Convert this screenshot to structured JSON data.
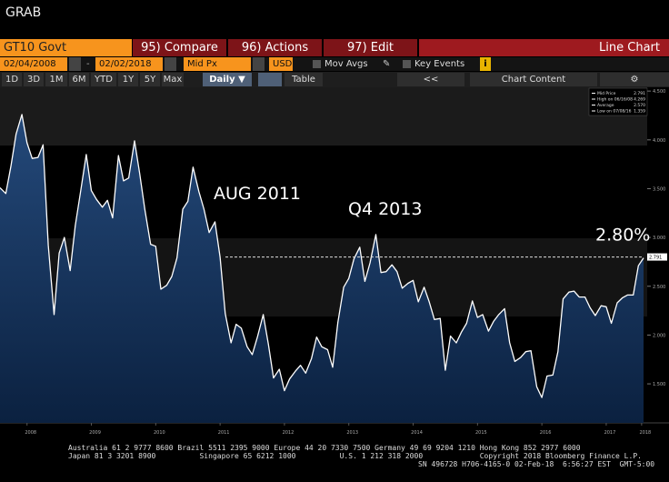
{
  "window": {
    "title": "GRAB"
  },
  "toolbar": {
    "security": "GT10 Govt",
    "buttons": [
      "95) Compare",
      "96) Actions",
      "97) Edit"
    ],
    "chart_type": "Line Chart",
    "start_date": "02/04/2008",
    "end_date": "02/02/2018",
    "field": "Mid Px",
    "currency": "USD",
    "options": [
      "Mov Avgs",
      "Key Events"
    ],
    "periods": [
      "1D",
      "3D",
      "1M",
      "6M",
      "YTD",
      "1Y",
      "5Y",
      "Max"
    ],
    "frequency": "Daily",
    "table": "Table",
    "nav": "<<",
    "chart_content": "Chart Content"
  },
  "chart_data": {
    "type": "line",
    "x": [
      2008.08,
      2008.17,
      2008.25,
      2008.33,
      2008.42,
      2008.5,
      2008.58,
      2008.67,
      2008.75,
      2008.83,
      2008.92,
      2009.0,
      2009.08,
      2009.17,
      2009.25,
      2009.33,
      2009.42,
      2009.5,
      2009.58,
      2009.67,
      2009.75,
      2009.83,
      2009.92,
      2010.0,
      2010.08,
      2010.17,
      2010.25,
      2010.33,
      2010.42,
      2010.5,
      2010.58,
      2010.67,
      2010.75,
      2010.83,
      2010.92,
      2011.0,
      2011.08,
      2011.17,
      2011.25,
      2011.33,
      2011.42,
      2011.5,
      2011.58,
      2011.67,
      2011.75,
      2011.83,
      2011.92,
      2012.0,
      2012.08,
      2012.17,
      2012.25,
      2012.33,
      2012.42,
      2012.5,
      2012.58,
      2012.67,
      2012.75,
      2012.83,
      2012.92,
      2013.0,
      2013.08,
      2013.17,
      2013.25,
      2013.33,
      2013.42,
      2013.5,
      2013.58,
      2013.67,
      2013.75,
      2013.83,
      2013.92,
      2014.0,
      2014.08,
      2014.17,
      2014.25,
      2014.33,
      2014.42,
      2014.5,
      2014.58,
      2014.67,
      2014.75,
      2014.83,
      2014.92,
      2015.0,
      2015.08,
      2015.17,
      2015.25,
      2015.33,
      2015.42,
      2015.5,
      2015.58,
      2015.67,
      2015.75,
      2015.83,
      2015.92,
      2016.0,
      2016.08,
      2016.17,
      2016.25,
      2016.33,
      2016.42,
      2016.5,
      2016.58,
      2016.67,
      2016.75,
      2016.83,
      2016.92,
      2017.0,
      2017.08,
      2017.17,
      2017.25,
      2017.33,
      2017.42,
      2017.5,
      2017.58,
      2017.67,
      2017.75,
      2017.83,
      2017.92,
      2018.0,
      2018.08
    ],
    "series": [
      {
        "name": "Mid Price",
        "color": "#ffffff",
        "values": [
          3.51,
          3.45,
          3.73,
          4.06,
          4.26,
          3.97,
          3.81,
          3.82,
          3.95,
          2.92,
          2.21,
          2.84,
          3.0,
          2.66,
          3.12,
          3.46,
          3.85,
          3.48,
          3.39,
          3.31,
          3.38,
          3.2,
          3.84,
          3.58,
          3.61,
          3.99,
          3.66,
          3.29,
          2.93,
          2.91,
          2.47,
          2.51,
          2.6,
          2.79,
          3.29,
          3.37,
          3.72,
          3.47,
          3.29,
          3.05,
          3.16,
          2.8,
          2.22,
          1.92,
          2.11,
          2.07,
          1.88,
          1.8,
          1.98,
          2.21,
          1.91,
          1.56,
          1.65,
          1.43,
          1.55,
          1.63,
          1.69,
          1.61,
          1.76,
          1.98,
          1.88,
          1.85,
          1.67,
          2.13,
          2.49,
          2.58,
          2.78,
          2.9,
          2.55,
          2.74,
          3.03,
          2.64,
          2.65,
          2.72,
          2.65,
          2.48,
          2.53,
          2.56,
          2.34,
          2.49,
          2.34,
          2.16,
          2.17,
          1.64,
          1.99,
          1.92,
          2.03,
          2.12,
          2.35,
          2.18,
          2.21,
          2.04,
          2.14,
          2.21,
          2.27,
          1.92,
          1.73,
          1.77,
          1.83,
          1.84,
          1.47,
          1.36,
          1.58,
          1.59,
          1.83,
          2.37,
          2.44,
          2.45,
          2.39,
          2.39,
          2.28,
          2.2,
          2.3,
          2.29,
          2.12,
          2.33,
          2.38,
          2.41,
          2.41,
          2.71,
          2.79
        ]
      }
    ],
    "xlim": [
      2008.08,
      2018.08
    ],
    "ylim": [
      1.1,
      4.52
    ],
    "xticks": [
      {
        "value": 2008.5,
        "label": "2008"
      },
      {
        "value": 2009.5,
        "label": "2009"
      },
      {
        "value": 2010.5,
        "label": "2010"
      },
      {
        "value": 2011.5,
        "label": "2011"
      },
      {
        "value": 2012.5,
        "label": "2012"
      },
      {
        "value": 2013.5,
        "label": "2013"
      },
      {
        "value": 2014.5,
        "label": "2014"
      },
      {
        "value": 2015.5,
        "label": "2015"
      },
      {
        "value": 2016.5,
        "label": "2016"
      },
      {
        "value": 2017.5,
        "label": "2017"
      },
      {
        "value": 2018.05,
        "label": "2018"
      }
    ],
    "yticks": [
      {
        "value": 1.5,
        "label": "1.500"
      },
      {
        "value": 2,
        "label": "2.000"
      },
      {
        "value": 2.5,
        "label": "2.500"
      },
      {
        "value": 3,
        "label": "3.000"
      },
      {
        "value": 3.5,
        "label": "3.500"
      },
      {
        "value": 4,
        "label": "4.000"
      },
      {
        "value": 4.5,
        "label": "4.500"
      }
    ],
    "annotations": [
      "AUG 2011",
      "Q4 2013"
    ],
    "ref_line": {
      "value": 2.8,
      "label": "2.80%"
    },
    "last_value_label": "2.791",
    "legend_stats": [
      [
        "2.791"
      ],
      [
        "High on 06/16/08",
        "4.269"
      ],
      [
        "Average",
        "2.570"
      ],
      [
        "Low on 07/08/16",
        "1.359"
      ]
    ]
  },
  "footer": {
    "lines": [
      "Australia 61 2 9777 8600 Brazil 5511 2395 9000 Europe 44 20 7330 7500 Germany 49 69 9204 1210 Hong Kong 852 2977 6000",
      "Japan 81 3 3201 8900          Singapore 65 6212 1000          U.S. 1 212 318 2000             Copyright 2018 Bloomberg Finance L.P.",
      "SN 496728 H706-4165-0 02-Feb-18  6:56:27 EST  GMT-5:00"
    ]
  }
}
